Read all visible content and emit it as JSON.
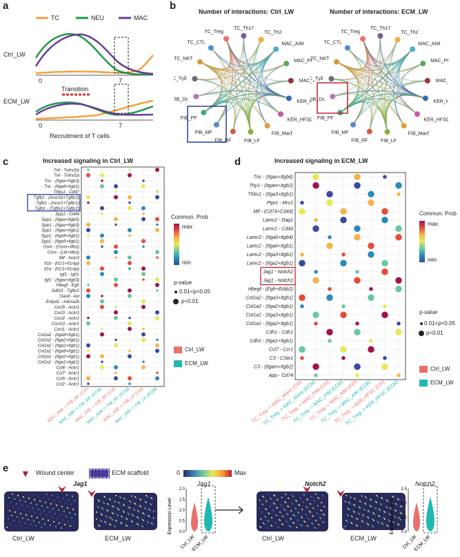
{
  "panels": {
    "a": "a",
    "b": "b",
    "c": "c",
    "d": "d",
    "e": "e"
  },
  "panel_a": {
    "legend": [
      "TC",
      "NEU",
      "MAC"
    ],
    "colors": {
      "TC": "#f5a03a",
      "NEU": "#1e9a4a",
      "MAC": "#6a3a9a"
    },
    "row1_label": "Ctrl_LW",
    "row2_label": "ECM_LW",
    "zero": "0",
    "seven": "7",
    "transition_label": "Transition",
    "xlabel": "Recruitment of T cells"
  },
  "panel_b": {
    "left_title": "Number of interactions: Ctrl_LW",
    "right_title": "Number of interactions: ECM_LW",
    "nodes": [
      "TC_Treg",
      "TC_Th17",
      "TC_Th2",
      "MAC_AIM",
      "MAC_PIM",
      "MAC_Mono",
      "KER_HFP",
      "KER_HFSC",
      "FIB_Macf",
      "FIB_LF",
      "FIB_RF",
      "FIB_MF",
      "FIB_PF",
      "FIB_Dc",
      "TC_Tγδ",
      "TC_NKT",
      "TC_CTL"
    ]
  },
  "panel_c": {
    "title": "Increased signaling in Ctrl_LW",
    "rows": [
      "Tnf - Tnfrsf1b",
      "Tnf - Tnfrsf1a",
      "Tnc - (Itgav+Itgb3)",
      "Tnc - (Itga9+Itgb1)",
      "Thbs1 - Cd47",
      "Tgfb1 - (Acvr1b+Tgfbr2)",
      "Tgfb1 - (Acvr1+Tgfbr1)",
      "Tgfb1 - (Tgfbr1+Tgfbr2)",
      "Spp1 - Cd44",
      "Spp1 - (Itgav+Itgb5)",
      "Spp1 - (Itgav+Itgb3)",
      "Spp1 - (Itgav+Itgb1)",
      "Spp1 - (Itga9+Itgb1)",
      "Spp1 - (Itga5+Itgb1)",
      "Osm - (Osmr+Il6st)",
      "Osm - (Lifr+Il6st)",
      "Mif - Ackr3",
      "Il1b - (Il1r1+Il1rap)",
      "Il1a - (Il1r1+Il1rap)",
      "Igf1 - Igf1r",
      "Igf1 - (Itgav+Itgb3)",
      "Hbegf - Egfr",
      "Gdf15 - Tgfbr2",
      "Gas6 - Axl",
      "Entpd1 - Adora2b",
      "Cxcl5 - Ackr1",
      "Cxcl3 - Ackr1",
      "Cxcl2 - Ackr1",
      "Cxcl10 - Ackr1",
      "Cxcl1 - Ackr1",
      "Col1a2 - (Itga9+Itgb1)",
      "Col1a2 - (Itga2+Itgb1)",
      "Col1a2 - (Itga1+Itgb1)",
      "Col1a1 - (Itga9+Itgb1)",
      "Col1a1 - (Itga2+Itgb1)",
      "Col1a1 - (Itga1+Itgb1)",
      "Ccl8 - Ackr1",
      "Ccl7 - Ackr1",
      "Ccl5 - Ackr1",
      "Ccl2 - Ackr1"
    ],
    "cols": [
      "MAC_AIM -> FIB_MF (Ctrl)",
      "MAC_AIM -> FIB_MF (ECM)",
      "MAC_AIM -> FIB_RF (Ctrl)",
      "MAC_AIM -> FIB_RF (ECM)",
      "MAC_AIM -> FIB_LF (Ctrl)",
      "MAC_AIM -> FIB_LF (ECM)"
    ],
    "col_colors": [
      "#e8716b",
      "#20b8b0",
      "#e8716b",
      "#20b8b0",
      "#e8716b",
      "#20b8b0"
    ],
    "legend_prob_title": "Commun. Prob",
    "legend_max": "max",
    "legend_min": "min",
    "legend_p_title": "p-value",
    "legend_p1": "0.01<p<0.05",
    "legend_p2": "p<0.01",
    "legend_ctrl": "Ctrl_LW",
    "legend_ecm": "ECM_LW"
  },
  "panel_d": {
    "title": "Increased signaling in ECM_LW",
    "rows": [
      "Tnc - (Itgav+Itgb6)",
      "Thy1 - (Itgam+Itgb2)",
      "Thbs1 - (Itga3+Itgb1)",
      "Ptprc - Mrc1",
      "Mif - (Cd74+Cd44)",
      "Lamc2 - Dag1",
      "Lamc2 - Cd44",
      "Lamc2 - (Itga6+Itgb4)",
      "Lamc2 - (Itga6+Itgb1)",
      "Lamc2 - (Itga3+Itgb1)",
      "Lamc2 - (Itga2+Itgb1)",
      "Jag1 - Notch2",
      "Jag1 - Notch1",
      "Hbegf - (Egfr+Erbb2)",
      "Col1a2 - (Itga3+Itgb1)",
      "Col1a2 - (Itga2+Itgb1)",
      "Col1a1 - (Itga3+Itgb1)",
      "Col1a1 - (Itga2+Itgb1)",
      "Cdh1 - Cdh1",
      "Cdh1 - (Itga1+Itgb1)",
      "Ccl7 - Ccr1",
      "C3 - C3ar1",
      "C3 - (Itgam+Itgb2)",
      "App - Cd74"
    ],
    "cols": [
      "TC_Treg -> MAC_Mono (Ctrl)",
      "TC_Treg -> MAC_Mono (ECM)",
      "TC_Treg -> MAC_PIM (Ctrl)",
      "TC_Treg -> MAC_PIM (ECM)",
      "TC_Treg -> MAC_AIM (Ctrl)",
      "TC_Treg -> MAC_AIM (ECM)",
      "TC_Treg -> KER_HFSC (Ctrl)",
      "TC_Treg -> KER_HFSC (ECM)"
    ],
    "col_colors": [
      "#e8716b",
      "#20b8b0",
      "#e8716b",
      "#20b8b0",
      "#e8716b",
      "#20b8b0",
      "#e8716b",
      "#20b8b0"
    ],
    "legend_prob_title": "Commun. Prob",
    "legend_max": "max",
    "legend_min": "min",
    "legend_p_title": "p-value",
    "legend_p1": "0.01<p<0.05",
    "legend_p2": "p<0.01",
    "legend_ctrl": "Ctrl_LW",
    "legend_ecm": "ECM_LW"
  },
  "panel_e": {
    "wound_label": "Wound center",
    "ecm_label": "ECM scaffold",
    "scale_min": "0",
    "scale_max": "Max",
    "gene1": "Jag1",
    "gene2": "Notch2",
    "ctrl": "Ctrl_LW",
    "ecm": "ECM_LW",
    "ylabel": "Expression Level",
    "ticks": [
      "0.0",
      "0.5",
      "1.0",
      "1.5",
      "2.0"
    ],
    "ticks2": [
      "0.0",
      "0.5",
      "1.0",
      "1.5"
    ]
  }
}
